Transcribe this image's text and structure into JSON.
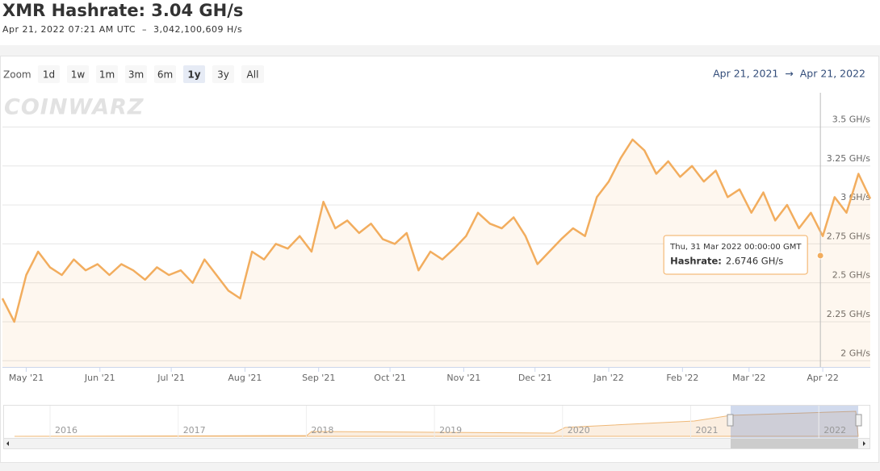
{
  "header": {
    "title": "XMR Hashrate: 3.04 GH/s",
    "subtitle": "Apr 21, 2022 07:21 AM UTC  –  3,042,100,609 H/s"
  },
  "zoom": {
    "label": "Zoom",
    "buttons": [
      "1d",
      "1w",
      "1m",
      "3m",
      "6m",
      "1y",
      "3y",
      "All"
    ],
    "selected": "1y",
    "range": "Apr 21, 2021  →  Apr 21, 2022"
  },
  "watermark": "COINWARZ",
  "chart_data": {
    "type": "area",
    "x": [
      "2021-04-21",
      "2021-04-26",
      "2021-05-01",
      "2021-05-06",
      "2021-05-11",
      "2021-05-16",
      "2021-05-21",
      "2021-05-26",
      "2021-05-31",
      "2021-06-05",
      "2021-06-10",
      "2021-06-15",
      "2021-06-20",
      "2021-06-25",
      "2021-06-30",
      "2021-07-05",
      "2021-07-10",
      "2021-07-15",
      "2021-07-20",
      "2021-07-25",
      "2021-07-30",
      "2021-08-04",
      "2021-08-09",
      "2021-08-14",
      "2021-08-19",
      "2021-08-24",
      "2021-08-29",
      "2021-09-03",
      "2021-09-08",
      "2021-09-13",
      "2021-09-18",
      "2021-09-23",
      "2021-09-28",
      "2021-10-03",
      "2021-10-08",
      "2021-10-13",
      "2021-10-18",
      "2021-10-23",
      "2021-10-28",
      "2021-11-02",
      "2021-11-07",
      "2021-11-12",
      "2021-11-17",
      "2021-11-22",
      "2021-11-27",
      "2021-12-02",
      "2021-12-07",
      "2021-12-12",
      "2021-12-17",
      "2021-12-22",
      "2021-12-27",
      "2022-01-01",
      "2022-01-06",
      "2022-01-11",
      "2022-01-16",
      "2022-01-21",
      "2022-01-26",
      "2022-01-31",
      "2022-02-05",
      "2022-02-10",
      "2022-02-15",
      "2022-02-20",
      "2022-02-25",
      "2022-03-02",
      "2022-03-07",
      "2022-03-12",
      "2022-03-17",
      "2022-03-22",
      "2022-03-27",
      "2022-04-01",
      "2022-04-06",
      "2022-04-11",
      "2022-04-16",
      "2022-04-21"
    ],
    "values": [
      2.4,
      2.25,
      2.55,
      2.7,
      2.6,
      2.55,
      2.65,
      2.58,
      2.62,
      2.55,
      2.62,
      2.58,
      2.52,
      2.6,
      2.55,
      2.58,
      2.5,
      2.65,
      2.55,
      2.45,
      2.4,
      2.7,
      2.65,
      2.75,
      2.72,
      2.8,
      2.7,
      3.02,
      2.85,
      2.9,
      2.82,
      2.88,
      2.78,
      2.75,
      2.82,
      2.58,
      2.7,
      2.65,
      2.72,
      2.8,
      2.95,
      2.88,
      2.85,
      2.92,
      2.8,
      2.62,
      2.7,
      2.78,
      2.85,
      2.8,
      3.05,
      3.15,
      3.3,
      3.42,
      3.35,
      3.2,
      3.28,
      3.18,
      3.25,
      3.15,
      3.22,
      3.05,
      3.1,
      2.95,
      3.08,
      2.9,
      3.0,
      2.85,
      2.95,
      2.8,
      3.05,
      2.95,
      3.2,
      3.04
    ],
    "color": "#f2ad5e",
    "xlim": [
      "2021-04-21",
      "2022-04-21"
    ],
    "xticks": [
      {
        "value": "2021-05-01",
        "label": "May '21"
      },
      {
        "value": "2021-06-01",
        "label": "Jun '21"
      },
      {
        "value": "2021-07-01",
        "label": "Jul '21"
      },
      {
        "value": "2021-08-01",
        "label": "Aug '21"
      },
      {
        "value": "2021-09-01",
        "label": "Sep '21"
      },
      {
        "value": "2021-10-01",
        "label": "Oct '21"
      },
      {
        "value": "2021-11-01",
        "label": "Nov '21"
      },
      {
        "value": "2021-12-01",
        "label": "Dec '21"
      },
      {
        "value": "2022-01-01",
        "label": "Jan '22"
      },
      {
        "value": "2022-02-01",
        "label": "Feb '22"
      },
      {
        "value": "2022-03-01",
        "label": "Mar '22"
      },
      {
        "value": "2022-04-01",
        "label": "Apr '22"
      }
    ],
    "ylim": [
      1.96,
      3.72
    ],
    "yticks": [
      {
        "value": 2,
        "label": "2 GH/s"
      },
      {
        "value": 2.25,
        "label": "2.25 GH/s"
      },
      {
        "value": 2.5,
        "label": "2.5 GH/s"
      },
      {
        "value": 2.75,
        "label": "2.75 GH/s"
      },
      {
        "value": 3,
        "label": "3 GH/s"
      },
      {
        "value": 3.25,
        "label": "3.25 GH/s"
      },
      {
        "value": 3.5,
        "label": "3.5 GH/s"
      }
    ],
    "grid": true,
    "tooltip": {
      "x": "2022-03-31",
      "date_label": "Thu, 31 Mar 2022 00:00:00 GMT",
      "name": "Hashrate:",
      "value": 2.6746,
      "value_label": "2.6746 GH/s"
    },
    "navigator": {
      "labels": [
        "2016",
        "2017",
        "2018",
        "2019",
        "2020",
        "2021",
        "2022"
      ]
    }
  }
}
